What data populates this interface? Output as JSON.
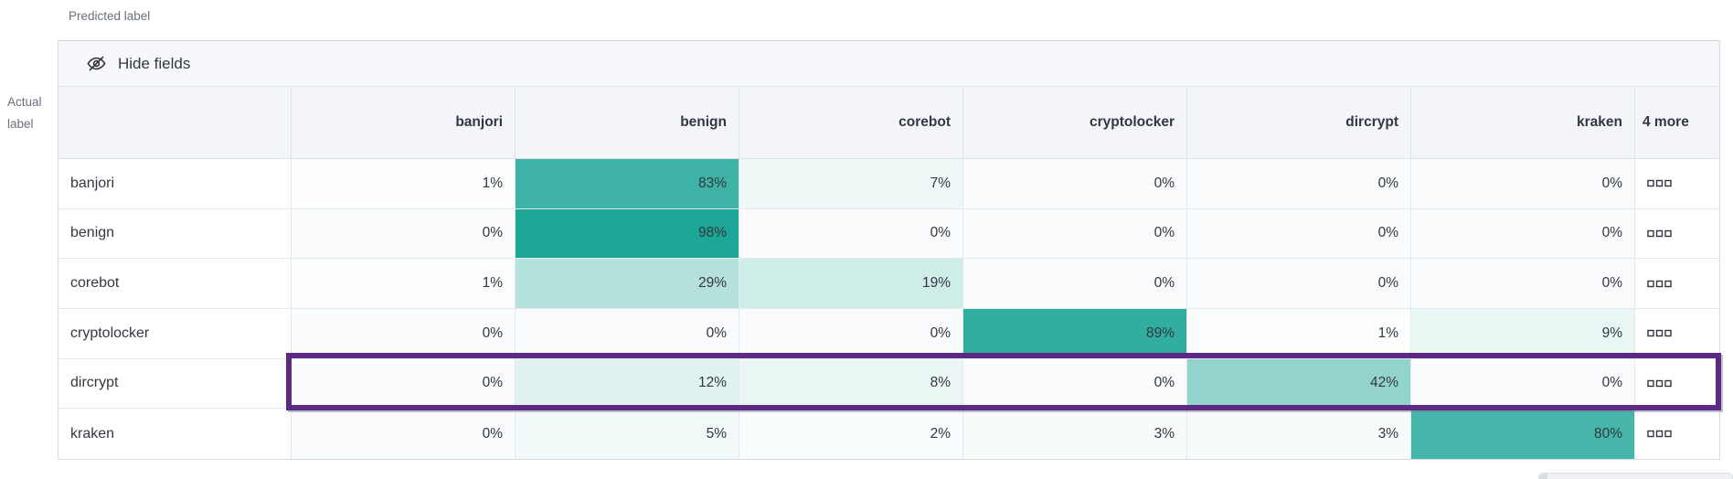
{
  "chart_data": {
    "type": "heatmap",
    "xlabel": "Predicted label",
    "ylabel": "Actual label",
    "columns": [
      "banjori",
      "benign",
      "corebot",
      "cryptolocker",
      "dircrypt",
      "kraken"
    ],
    "rows": [
      "banjori",
      "benign",
      "corebot",
      "cryptolocker",
      "dircrypt",
      "kraken"
    ],
    "hidden_columns_label": "4 more",
    "unit": "%",
    "values_percent": [
      [
        1,
        83,
        7,
        0,
        0,
        0
      ],
      [
        0,
        98,
        0,
        0,
        0,
        0
      ],
      [
        1,
        29,
        19,
        0,
        0,
        0
      ],
      [
        0,
        0,
        0,
        89,
        1,
        9
      ],
      [
        0,
        12,
        8,
        0,
        42,
        0
      ],
      [
        0,
        5,
        2,
        3,
        3,
        80
      ]
    ],
    "highlighted_row": "dircrypt",
    "legend_position": "none",
    "colors": {
      "heat_max": "#17a493",
      "heat_zero": "#fafbfd",
      "highlight_border": "#5c2a84",
      "header_bg": "#f3f5f9",
      "toolbar_bg": "#f6f8fb"
    }
  },
  "toolbar": {
    "hide_fields_label": "Hide fields"
  },
  "icons": {
    "hide_fields": "eye-slash-icon",
    "row_actions": "boxes-horizontal-icon"
  }
}
